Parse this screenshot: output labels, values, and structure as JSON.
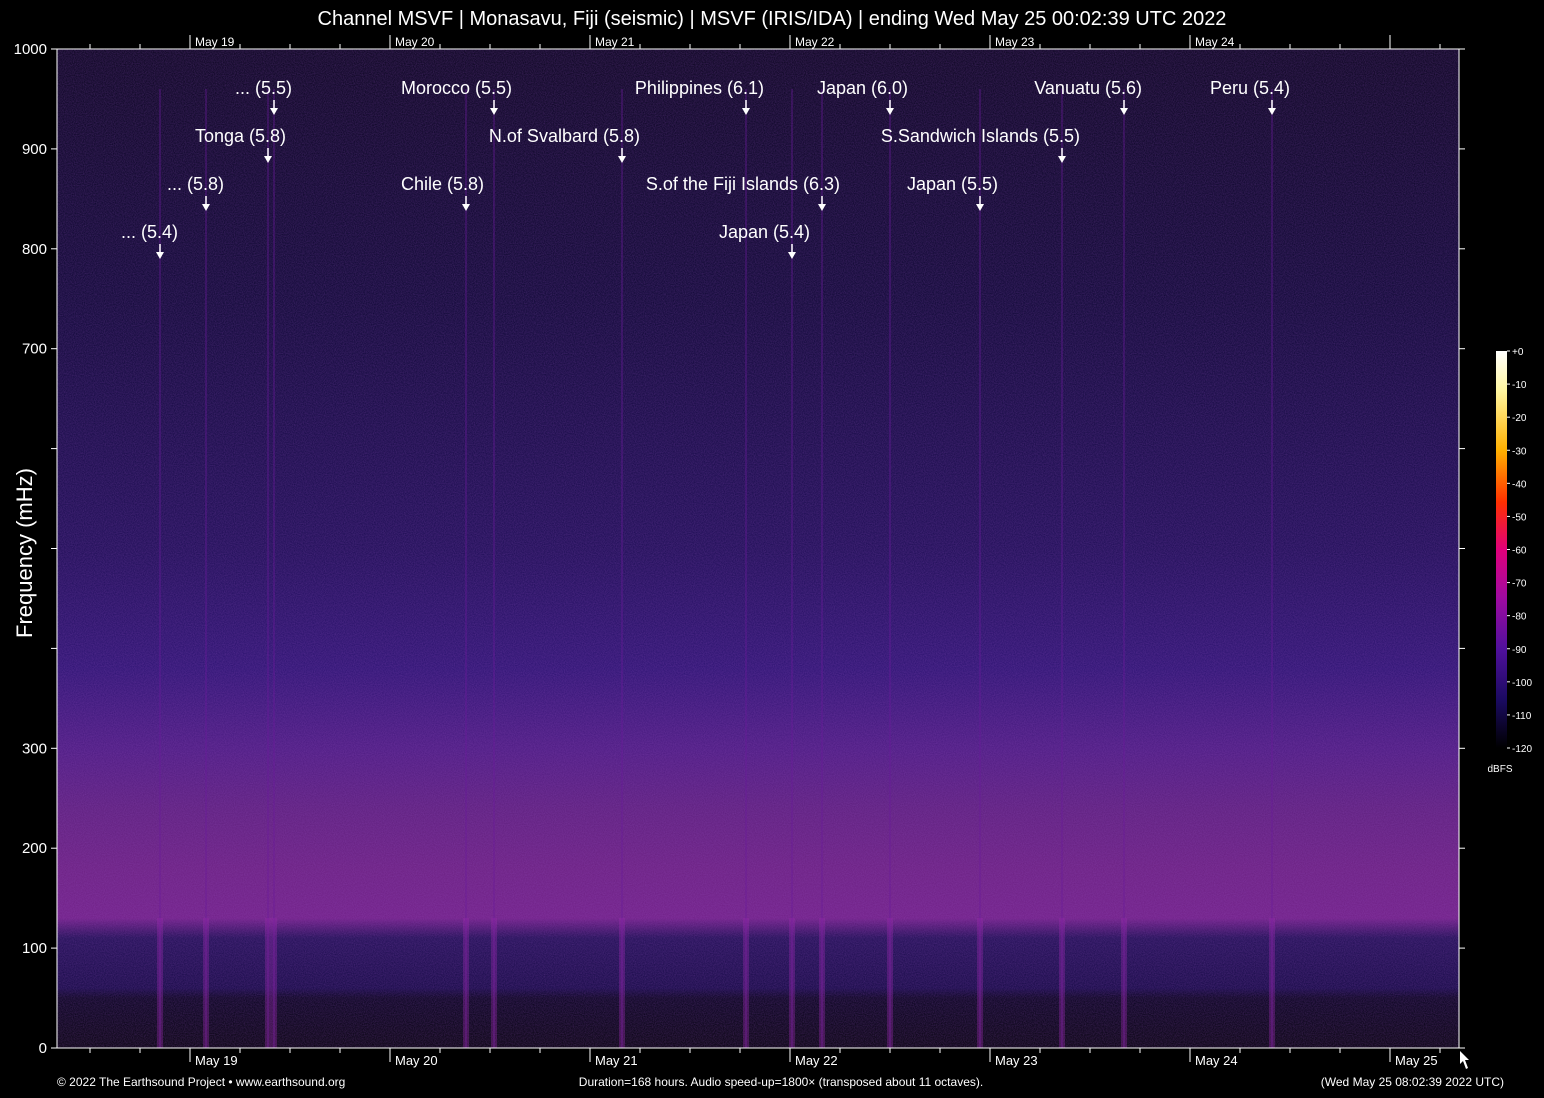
{
  "chart_data": {
    "type": "heatmap",
    "title": "Channel MSVF | Monasavu, Fiji (seismic) | MSVF (IRIS/IDA) | ending Wed May 25 00:02:39 UTC 2022",
    "ylabel": "Frequency (mHz)",
    "xlabel": "",
    "ylim": [
      0,
      1000
    ],
    "y_ticks_labeled": [
      0,
      100,
      200,
      300,
      700,
      800,
      900,
      1000
    ],
    "y_ticks": [
      0,
      100,
      200,
      300,
      400,
      500,
      600,
      700,
      800,
      900,
      1000
    ],
    "x_range_days": [
      -0.67,
      6.33
    ],
    "x_day_labels_bottom": [
      "May 19",
      "May 20",
      "May 21",
      "May 22",
      "May 23",
      "May 24",
      "May 25"
    ],
    "x_day_labels_top": [
      "May 19",
      "May 20",
      "May 21",
      "May 22",
      "May 23",
      "May 24"
    ],
    "events": [
      {
        "label": "... (5.5)",
        "day": 0.42
      },
      {
        "label": "Tonga (5.8)",
        "day": 0.39
      },
      {
        "label": "... (5.8)",
        "day": 0.08
      },
      {
        "label": "... (5.4)",
        "day": -0.15
      },
      {
        "label": "Morocco (5.5)",
        "day": 1.52
      },
      {
        "label": "Chile (5.8)",
        "day": 1.38
      },
      {
        "label": "N.of Svalbard (5.8)",
        "day": 2.16
      },
      {
        "label": "Philippines (6.1)",
        "day": 2.78
      },
      {
        "label": "S.of the Fiji Islands (6.3)",
        "day": 3.16
      },
      {
        "label": "Japan (5.4)",
        "day": 3.01
      },
      {
        "label": "Japan (6.0)",
        "day": 3.5
      },
      {
        "label": "S.Sandwich Islands (5.5)",
        "day": 4.36
      },
      {
        "label": "Japan (5.5)",
        "day": 3.95
      },
      {
        "label": "Vanuatu (5.6)",
        "day": 4.67
      },
      {
        "label": "Peru (5.4)",
        "day": 5.41
      }
    ],
    "colorbar": {
      "ticks": [
        "+0",
        "-10",
        "-20",
        "-30",
        "-40",
        "-50",
        "-60",
        "-70",
        "-80",
        "-90",
        "-100",
        "-110",
        "-120"
      ],
      "unit": "dBFS"
    }
  },
  "footer": {
    "left": "© 2022 The Earthsound Project • www.earthsound.org",
    "center": "Duration=168 hours. Audio speed-up=1800× (transposed about 11 octaves).",
    "right": "(Wed May 25 08:02:39 2022 UTC)"
  }
}
